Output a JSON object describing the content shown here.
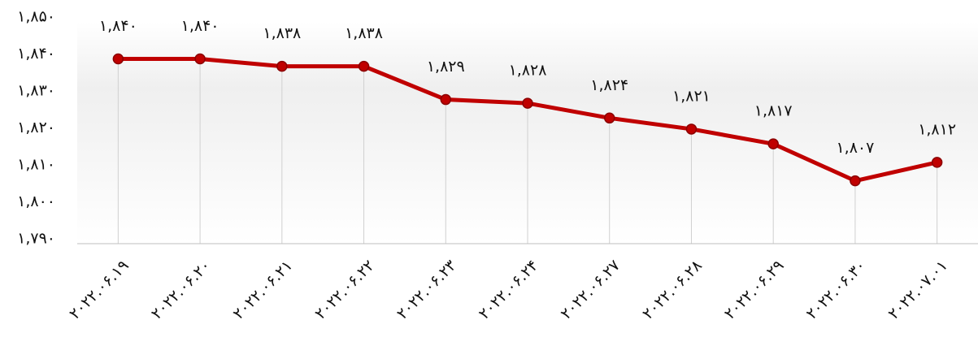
{
  "chart_data": {
    "type": "line",
    "categories": [
      "۲۰۲۲.۰۶.۱۹",
      "۲۰۲۲.۰۶.۲۰",
      "۲۰۲۲.۰۶.۲۱",
      "۲۰۲۲.۰۶.۲۲",
      "۲۰۲۲.۰۶.۲۳",
      "۲۰۲۲.۰۶.۲۴",
      "۲۰۲۲.۰۶.۲۷",
      "۲۰۲۲.۰۶.۲۸",
      "۲۰۲۲.۰۶.۲۹",
      "۲۰۲۲.۰۶.۳۰",
      "۲۰۲۲.۰۷.۰۱"
    ],
    "values": [
      1840,
      1840,
      1838,
      1838,
      1829,
      1828,
      1824,
      1821,
      1817,
      1807,
      1812
    ],
    "value_labels": [
      "۱,۸۴۰",
      "۱,۸۴۰",
      "۱,۸۳۸",
      "۱,۸۳۸",
      "۱,۸۲۹",
      "۱,۸۲۸",
      "۱,۸۲۴",
      "۱,۸۲۱",
      "۱,۸۱۷",
      "۱,۸۰۷",
      "۱,۸۱۲"
    ],
    "color": "#c00000",
    "ylim": [
      1790,
      1850
    ],
    "yticks": [
      {
        "value": 1790,
        "label": "۱,۷۹۰"
      },
      {
        "value": 1800,
        "label": "۱,۸۰۰"
      },
      {
        "value": 1810,
        "label": "۱,۸۱۰"
      },
      {
        "value": 1820,
        "label": "۱,۸۲۰"
      },
      {
        "value": 1830,
        "label": "۱,۸۳۰"
      },
      {
        "value": 1840,
        "label": "۱,۸۴۰"
      },
      {
        "value": 1850,
        "label": "۱,۸۵۰"
      }
    ]
  }
}
